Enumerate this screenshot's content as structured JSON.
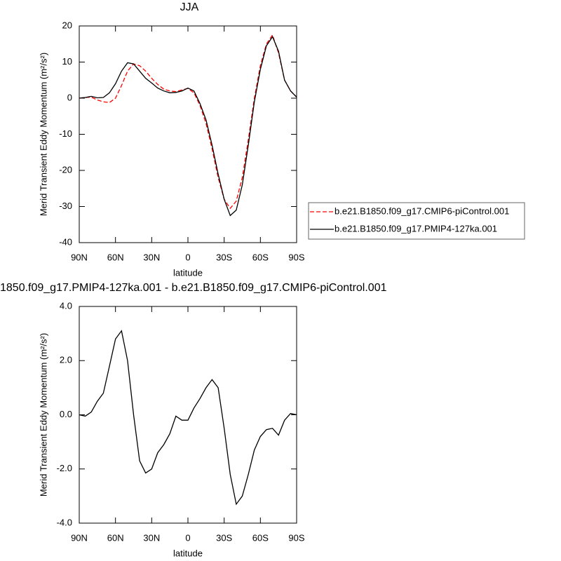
{
  "chart_data": [
    {
      "type": "line",
      "title": "JJA",
      "xlabel": "latitude",
      "ylabel": "Merid Transient Eddy Momentum (m²/s²)",
      "x": [
        90,
        85,
        80,
        75,
        70,
        65,
        60,
        55,
        50,
        45,
        40,
        35,
        30,
        25,
        20,
        15,
        10,
        5,
        0,
        -5,
        -10,
        -15,
        -20,
        -25,
        -30,
        -35,
        -40,
        -45,
        -50,
        -55,
        -60,
        -65,
        -70,
        -75,
        -80,
        -85,
        -90
      ],
      "xlim": [
        90,
        -90
      ],
      "xticks": [
        {
          "value": 90,
          "label": "90N"
        },
        {
          "value": 60,
          "label": "60N"
        },
        {
          "value": 30,
          "label": "30N"
        },
        0,
        {
          "value": -30,
          "label": "30S"
        },
        {
          "value": -60,
          "label": "60S"
        },
        {
          "value": -90,
          "label": "90S"
        }
      ],
      "ylim": [
        -40,
        20
      ],
      "yticks": [
        20,
        10,
        0,
        -10,
        -20,
        -30,
        -40
      ],
      "legend": "right",
      "series": [
        {
          "name": "b.e21.B1850.f09_g17.CMIP6-piControl.001",
          "color": "#ff0000",
          "dash": true,
          "values": [
            0,
            0.2,
            0.3,
            -0.5,
            -1,
            -1.2,
            0,
            3.5,
            7.5,
            9.5,
            9,
            7.5,
            5.5,
            3.8,
            2.5,
            2,
            1.8,
            2.3,
            2.7,
            1.5,
            -2,
            -7,
            -14,
            -22,
            -28,
            -30.5,
            -28.5,
            -22,
            -11.5,
            0,
            9,
            15,
            17.5,
            12.5,
            5,
            2,
            0.3
          ]
        },
        {
          "name": "b.e21.B1850.f09_g17.PMIP4-127ka.001",
          "color": "#000000",
          "dash": false,
          "values": [
            0,
            0.2,
            0.5,
            0.1,
            0.2,
            1.5,
            4,
            7.5,
            9.8,
            9.5,
            7.5,
            5.5,
            4.2,
            2.8,
            2,
            1.5,
            1.6,
            2,
            2.8,
            2,
            -1.5,
            -6,
            -13,
            -21,
            -28,
            -32.5,
            -31,
            -24,
            -13,
            -1,
            8,
            14.5,
            17,
            13,
            5,
            2,
            0.3
          ]
        }
      ]
    },
    {
      "type": "line",
      "title": "1850.f09_g17.PMIP4-127ka.001 - b.e21.B1850.f09_g17.CMIP6-piControl.001",
      "xlabel": "latitude",
      "ylabel": "Merid Transient Eddy Momentum (m²/s²)",
      "x": [
        90,
        85,
        80,
        75,
        70,
        65,
        60,
        55,
        50,
        45,
        40,
        35,
        30,
        25,
        20,
        15,
        10,
        5,
        0,
        -5,
        -10,
        -15,
        -20,
        -25,
        -30,
        -35,
        -40,
        -45,
        -50,
        -55,
        -60,
        -65,
        -70,
        -75,
        -80,
        -85,
        -90
      ],
      "xlim": [
        90,
        -90
      ],
      "xticks": [
        {
          "value": 90,
          "label": "90N"
        },
        {
          "value": 60,
          "label": "60N"
        },
        {
          "value": 30,
          "label": "30N"
        },
        0,
        {
          "value": -30,
          "label": "30S"
        },
        {
          "value": -60,
          "label": "60S"
        },
        {
          "value": -90,
          "label": "90S"
        }
      ],
      "ylim": [
        -4,
        4
      ],
      "yticks": [
        {
          "value": 4,
          "label": "4.0"
        },
        {
          "value": 2,
          "label": "2.0"
        },
        {
          "value": 0,
          "label": "0.0"
        },
        {
          "value": -2,
          "label": "-2.0"
        },
        {
          "value": -4,
          "label": "-4.0"
        }
      ],
      "series": [
        {
          "color": "#000000",
          "dash": false,
          "values": [
            0,
            -0.05,
            0.1,
            0.5,
            0.8,
            1.8,
            2.8,
            3.1,
            2,
            0,
            -1.7,
            -2.15,
            -2,
            -1.4,
            -1.1,
            -0.7,
            -0.05,
            -0.2,
            -0.2,
            0.25,
            0.6,
            1,
            1.3,
            1,
            -0.5,
            -2.2,
            -3.3,
            -3,
            -2.2,
            -1.3,
            -0.8,
            -0.55,
            -0.5,
            -0.75,
            -0.2,
            0.05,
            0
          ]
        }
      ]
    }
  ]
}
